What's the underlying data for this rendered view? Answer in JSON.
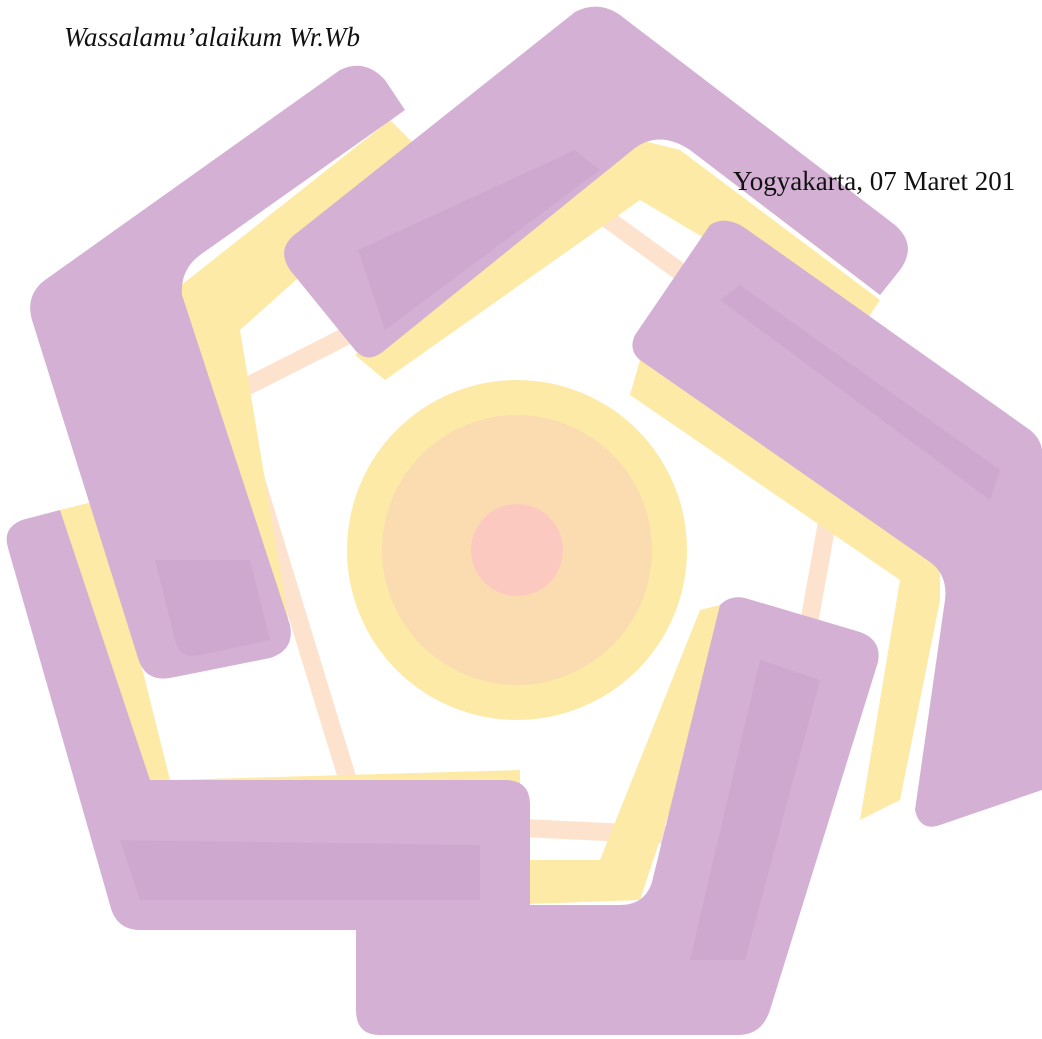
{
  "document": {
    "closing": "Wassalamu’alaikum Wr.Wb",
    "date_line": "Yogyakarta, 07 Maret 201"
  },
  "watermark": {
    "logo": "university-seal-watermark",
    "colors": {
      "purple": "#d4b0d4",
      "purple_shade": "#c9a0cc",
      "yellow": "#fdeaa6",
      "orange": "#fcd3ad",
      "pink": "#fcc9c0"
    }
  }
}
